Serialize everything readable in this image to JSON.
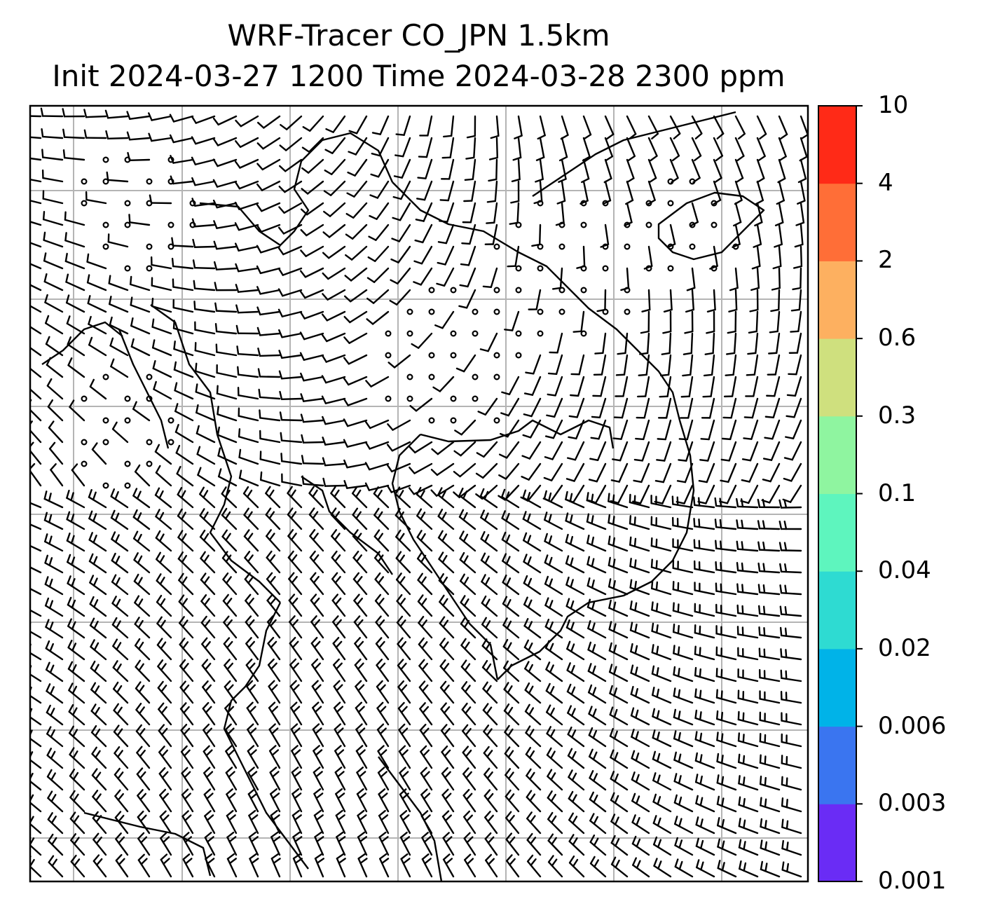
{
  "title": {
    "line1": "WRF-Tracer CO_JPN 1.5km",
    "line2": "Init 2024-03-27 1200 Time 2024-03-28 2300 ppm"
  },
  "colorbar": {
    "levels": [
      "0.001",
      "0.003",
      "0.006",
      "0.02",
      "0.04",
      "0.1",
      "0.3",
      "0.6",
      "2",
      "4",
      "10"
    ],
    "colors": [
      "#6a2cf5",
      "#3a75f0",
      "#00b3e8",
      "#2edbd2",
      "#5ef5be",
      "#8ff5a0",
      "#cfe07e",
      "#fdb060",
      "#ff6e37",
      "#ff2a17"
    ]
  },
  "map": {
    "background": "#ffffff",
    "gridline_color": "#b4b4b4",
    "features": [
      "coastline",
      "wind-barbs",
      "calm-circles"
    ]
  }
}
